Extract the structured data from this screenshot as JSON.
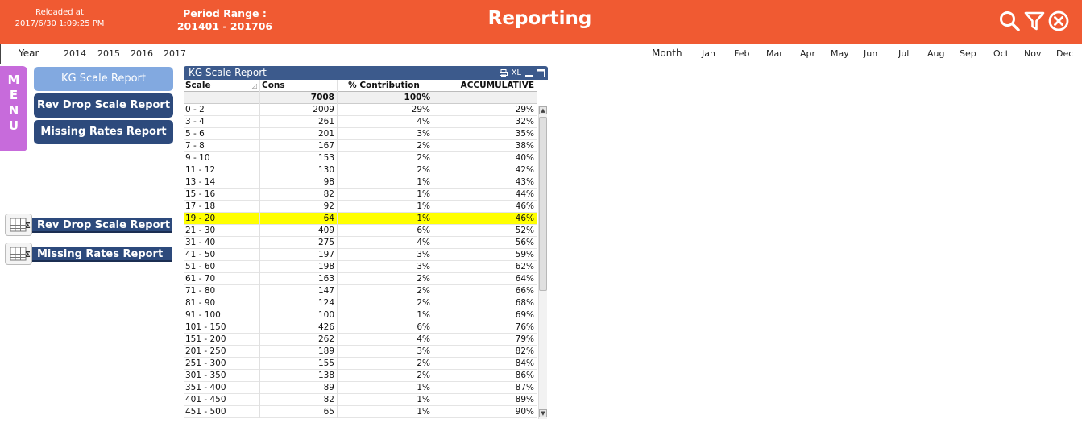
{
  "header": {
    "reloaded_label": "Reloaded at",
    "reloaded_value": "2017/6/30 1:09:25 PM",
    "period_label": "Period Range :",
    "period_value": "201401 - 201706",
    "title": "Reporting",
    "icons": [
      "search-icon",
      "filter-icon",
      "close-circle-icon"
    ],
    "color": "#f05a32"
  },
  "filters": {
    "year_label": "Year",
    "years": [
      "2014",
      "2015",
      "2016",
      "2017"
    ],
    "month_label": "Month",
    "months": [
      "Jan",
      "Feb",
      "Mar",
      "Apr",
      "May",
      "Jun",
      "Jul",
      "Aug",
      "Sep",
      "Oct",
      "Nov",
      "Dec"
    ]
  },
  "menu": {
    "letters": [
      "M",
      "E",
      "N",
      "U"
    ],
    "buttons": [
      "KG Scale Report",
      "Rev Drop Scale Report",
      "Missing Rates Report"
    ],
    "active": "KG Scale Report"
  },
  "minimized": [
    "Rev Drop Scale Report",
    "Missing Rates Report"
  ],
  "table": {
    "caption": "KG Scale Report",
    "controls": [
      "print-icon",
      "XL",
      "minimize-icon",
      "maximize-icon"
    ],
    "columns": [
      "Scale",
      "Cons",
      "% Contribution",
      "ACCUMULATIVE"
    ],
    "totals": [
      "",
      "7008",
      "100%",
      ""
    ],
    "highlighted_row": "19 - 20",
    "rows": [
      [
        "0 - 2",
        "2009",
        "29%",
        "29%"
      ],
      [
        "3 - 4",
        "261",
        "4%",
        "32%"
      ],
      [
        "5 - 6",
        "201",
        "3%",
        "35%"
      ],
      [
        "7 - 8",
        "167",
        "2%",
        "38%"
      ],
      [
        "9 - 10",
        "153",
        "2%",
        "40%"
      ],
      [
        "11 - 12",
        "130",
        "2%",
        "42%"
      ],
      [
        "13 - 14",
        "98",
        "1%",
        "43%"
      ],
      [
        "15 - 16",
        "82",
        "1%",
        "44%"
      ],
      [
        "17 - 18",
        "92",
        "1%",
        "46%"
      ],
      [
        "19 - 20",
        "64",
        "1%",
        "46%"
      ],
      [
        "21 - 30",
        "409",
        "6%",
        "52%"
      ],
      [
        "31 - 40",
        "275",
        "4%",
        "56%"
      ],
      [
        "41 - 50",
        "197",
        "3%",
        "59%"
      ],
      [
        "51 - 60",
        "198",
        "3%",
        "62%"
      ],
      [
        "61 - 70",
        "163",
        "2%",
        "64%"
      ],
      [
        "71 - 80",
        "147",
        "2%",
        "66%"
      ],
      [
        "81 - 90",
        "124",
        "2%",
        "68%"
      ],
      [
        "91 - 100",
        "100",
        "1%",
        "69%"
      ],
      [
        "101  -  150",
        "426",
        "6%",
        "76%"
      ],
      [
        "151  -  200",
        "262",
        "4%",
        "79%"
      ],
      [
        "201  -  250",
        "189",
        "3%",
        "82%"
      ],
      [
        "251  -  300",
        "155",
        "2%",
        "84%"
      ],
      [
        "301  -  350",
        "138",
        "2%",
        "86%"
      ],
      [
        "351  -  400",
        "89",
        "1%",
        "87%"
      ],
      [
        "401  -  450",
        "82",
        "1%",
        "89%"
      ],
      [
        "451  -  500",
        "65",
        "1%",
        "90%"
      ]
    ]
  }
}
